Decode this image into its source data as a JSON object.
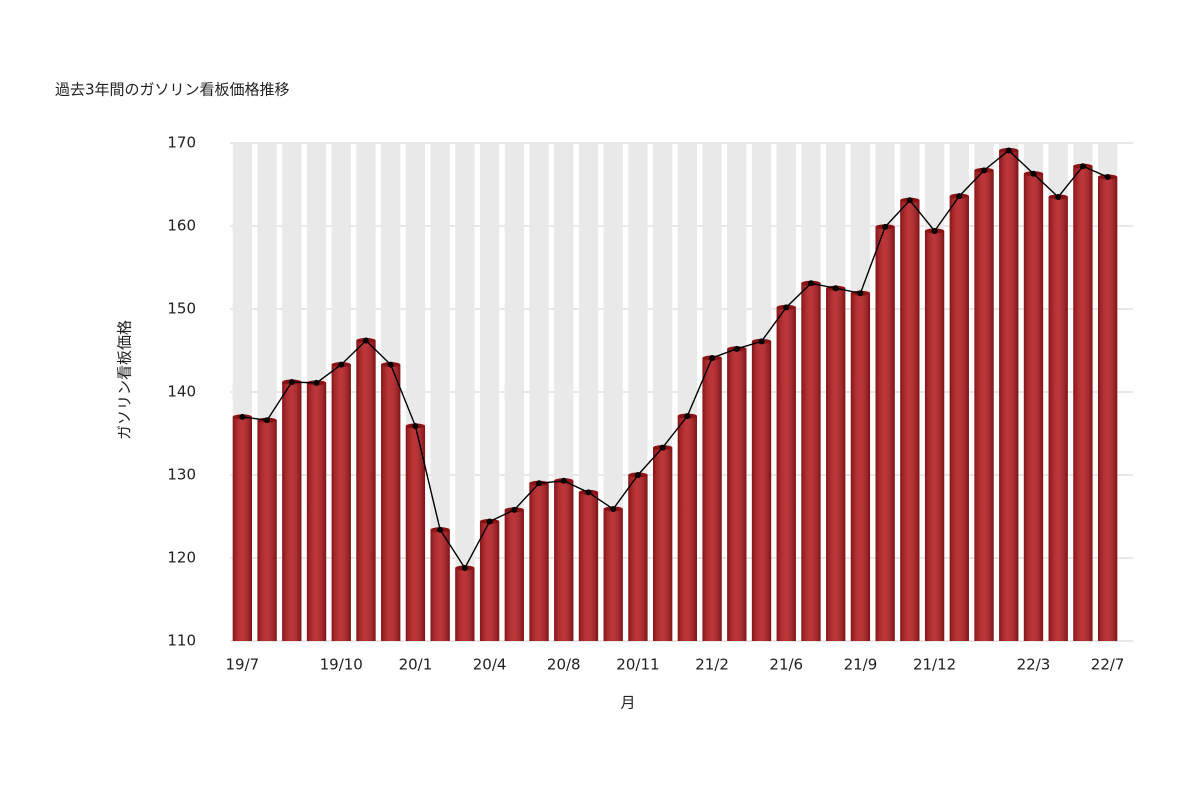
{
  "chart_data": {
    "type": "bar",
    "title": "過去3年間のガソリン看板価格推移",
    "x_label": "月",
    "y_label": "ガソリン看板価格",
    "categories": [
      "19/7",
      null,
      null,
      null,
      "19/10",
      null,
      null,
      "20/1",
      null,
      null,
      "20/4",
      null,
      null,
      "20/8",
      null,
      null,
      "20/11",
      null,
      null,
      "21/2",
      null,
      null,
      "21/6",
      null,
      null,
      "21/9",
      null,
      null,
      "21/12",
      null,
      null,
      null,
      "22/3",
      null,
      null,
      "22/7"
    ],
    "values": [
      137,
      136.6,
      141.2,
      141.1,
      143.3,
      146.2,
      143.3,
      135.9,
      123.4,
      118.8,
      124.4,
      125.8,
      129,
      129.3,
      127.9,
      125.9,
      130,
      133.3,
      137.1,
      144.1,
      145.2,
      146.1,
      150.2,
      153.1,
      152.5,
      151.9,
      159.9,
      163.1,
      159.4,
      163.6,
      166.7,
      169.1,
      166.3,
      163.5,
      167.2,
      165.9
    ],
    "color": "#b3191d",
    "background_color": "#e9e9e9",
    "line": true,
    "line_color": "#000000",
    "ylim": [
      110,
      170
    ],
    "yticks": [
      110,
      120,
      130,
      140,
      150,
      160,
      170
    ],
    "grid": true
  }
}
